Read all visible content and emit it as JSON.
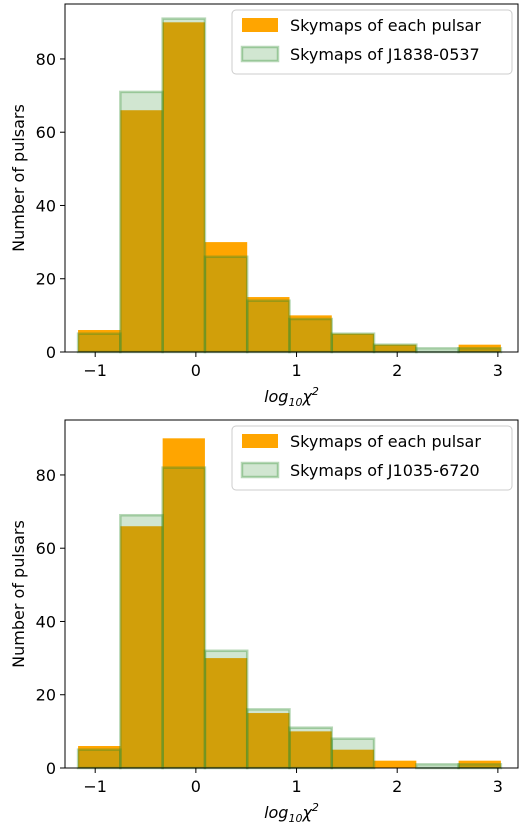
{
  "chart_data": [
    {
      "type": "bar",
      "bin_edges": [
        -1.17,
        -0.75,
        -0.33,
        0.09,
        0.51,
        0.93,
        1.35,
        1.77,
        2.19,
        2.61,
        3.03
      ],
      "xlabel_base": "log",
      "xlabel_sub": "10",
      "xlabel_var": "χ",
      "xlabel_sup": "2",
      "ylabel": "Number of pulsars",
      "xlim": [
        -1.3,
        3.2
      ],
      "ylim": [
        0,
        95
      ],
      "xticks": [
        -1,
        0,
        1,
        2,
        3
      ],
      "yticks": [
        0,
        20,
        40,
        60,
        80
      ],
      "legend_position": "upper right",
      "series": [
        {
          "name": "Skymaps of each pulsar",
          "color": "#ffa500",
          "values": [
            6,
            66,
            90,
            30,
            15,
            10,
            5,
            2,
            0,
            2
          ]
        },
        {
          "name": "Skymaps of J1838-0537",
          "color": "#2e8b2e",
          "values": [
            5,
            71,
            91,
            26,
            14,
            9,
            5,
            2,
            1,
            1
          ]
        }
      ]
    },
    {
      "type": "bar",
      "bin_edges": [
        -1.17,
        -0.75,
        -0.33,
        0.09,
        0.51,
        0.93,
        1.35,
        1.77,
        2.19,
        2.61,
        3.03
      ],
      "xlabel_base": "log",
      "xlabel_sub": "10",
      "xlabel_var": "χ",
      "xlabel_sup": "2",
      "ylabel": "Number of pulsars",
      "xlim": [
        -1.3,
        3.2
      ],
      "ylim": [
        0,
        95
      ],
      "xticks": [
        -1,
        0,
        1,
        2,
        3
      ],
      "yticks": [
        0,
        20,
        40,
        60,
        80
      ],
      "legend_position": "upper right",
      "series": [
        {
          "name": "Skymaps of each pulsar",
          "color": "#ffa500",
          "values": [
            6,
            66,
            90,
            30,
            15,
            10,
            5,
            2,
            0,
            2
          ]
        },
        {
          "name": "Skymaps of J1035-6720",
          "color": "#2e8b2e",
          "values": [
            5,
            69,
            82,
            32,
            16,
            11,
            8,
            0,
            1,
            1
          ]
        }
      ]
    }
  ]
}
